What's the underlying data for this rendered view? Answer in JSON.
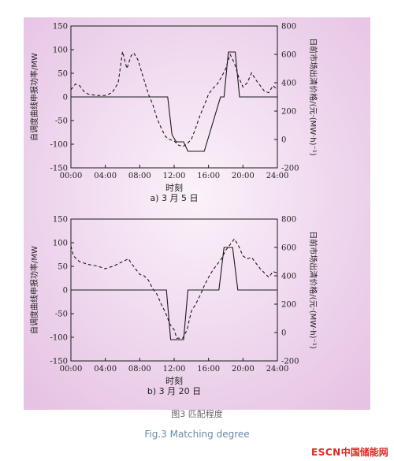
{
  "figure": {
    "caption_cn": "图3 匹配程度",
    "caption_en": "Fig.3 Matching degree",
    "logo": {
      "latin": "ESCN",
      "cjk": "中国储能网"
    },
    "colors": {
      "panel_bg_outer": "#e8c8e6",
      "panel_bg_inner": "#f9eef8",
      "line": "#1a1a1a"
    }
  },
  "chart_data": [
    {
      "type": "line",
      "subtitle": "a) 3 月 5 日",
      "xlabel": "时刻",
      "ylabel_left": "自调度曲线申报功率/MW",
      "ylabel_right": "日前市场出清价格/(元·(MW·h)⁻¹)",
      "x_ticks": [
        "00:00",
        "04:00",
        "08:00",
        "12:00",
        "16:00",
        "20:00",
        "24:00"
      ],
      "y_left_ticks": [
        150,
        100,
        50,
        0,
        -50,
        -100,
        -150
      ],
      "y_right_ticks": [
        800,
        600,
        400,
        200,
        0,
        -200
      ],
      "xlim": [
        0,
        24
      ],
      "ylim_left": [
        -150,
        150
      ],
      "ylim_right": [
        -200,
        800
      ],
      "series": [
        {
          "axis": "left",
          "style": "solid",
          "x": [
            0,
            11.25,
            11.75,
            12.25,
            13.1,
            13.6,
            15.5,
            17.4,
            17.8,
            18.3,
            19.1,
            19.6,
            24
          ],
          "y": [
            0,
            0,
            -80,
            -95,
            -95,
            -115,
            -115,
            0,
            0,
            95,
            95,
            0,
            0
          ]
        },
        {
          "axis": "right",
          "style": "dashed",
          "x": [
            0,
            0.5,
            1,
            1.5,
            2,
            3,
            4,
            4.8,
            5.5,
            6,
            6.5,
            7,
            7.3,
            7.8,
            8.5,
            9,
            9.5,
            10,
            10.5,
            11,
            11.5,
            12,
            12.5,
            13,
            13.5,
            14,
            14.5,
            15,
            15.5,
            16,
            16.5,
            17,
            17.5,
            18,
            18.5,
            19,
            19.5,
            20,
            20.5,
            21,
            21.5,
            22,
            22.5,
            23,
            23.5,
            24
          ],
          "y": [
            350,
            390,
            380,
            340,
            320,
            310,
            310,
            330,
            400,
            620,
            500,
            590,
            610,
            560,
            420,
            320,
            250,
            150,
            80,
            20,
            0,
            -10,
            -40,
            -50,
            -30,
            0,
            80,
            170,
            240,
            320,
            360,
            390,
            440,
            500,
            600,
            540,
            440,
            370,
            400,
            470,
            420,
            380,
            340,
            330,
            380,
            350
          ]
        }
      ]
    },
    {
      "type": "line",
      "subtitle": "b) 3 月 20 日",
      "xlabel": "时刻",
      "ylabel_left": "自调度曲线申报功率/MW",
      "ylabel_right": "日前市场出清价格/(元·(MW·h)⁻¹)",
      "x_ticks": [
        "00:00",
        "04:00",
        "08:00",
        "12:00",
        "16:00",
        "20:00",
        "24:00"
      ],
      "y_left_ticks": [
        150,
        100,
        50,
        0,
        -50,
        -100,
        -150
      ],
      "y_right_ticks": [
        800,
        600,
        400,
        200,
        0,
        -200
      ],
      "xlim": [
        0,
        24
      ],
      "ylim_left": [
        -150,
        150
      ],
      "ylim_right": [
        -200,
        800
      ],
      "series": [
        {
          "axis": "left",
          "style": "solid",
          "x": [
            0,
            11.1,
            11.6,
            13.1,
            13.6,
            17.2,
            17.8,
            18.8,
            19.4,
            24
          ],
          "y": [
            0,
            0,
            -105,
            -105,
            0,
            0,
            90,
            90,
            0,
            0
          ]
        },
        {
          "axis": "right",
          "style": "dashed",
          "x": [
            0,
            0.3,
            1,
            2,
            3,
            4,
            5,
            6,
            6.7,
            7,
            7.5,
            8,
            8.5,
            9,
            9.5,
            10,
            10.5,
            11,
            11.5,
            12,
            12.3,
            12.7,
            13,
            13.5,
            14,
            14.5,
            15,
            15.5,
            16,
            16.5,
            17,
            17.5,
            18,
            18.5,
            19,
            19.5,
            20,
            20.5,
            21,
            21.5,
            22,
            22.5,
            23,
            23.5,
            24
          ],
          "y": [
            610,
            540,
            500,
            480,
            470,
            450,
            470,
            500,
            520,
            490,
            450,
            410,
            400,
            370,
            310,
            270,
            200,
            140,
            60,
            20,
            -40,
            -40,
            -40,
            20,
            150,
            200,
            260,
            330,
            390,
            440,
            480,
            520,
            580,
            620,
            660,
            610,
            540,
            520,
            530,
            490,
            450,
            420,
            390,
            430,
            420
          ]
        }
      ]
    }
  ]
}
